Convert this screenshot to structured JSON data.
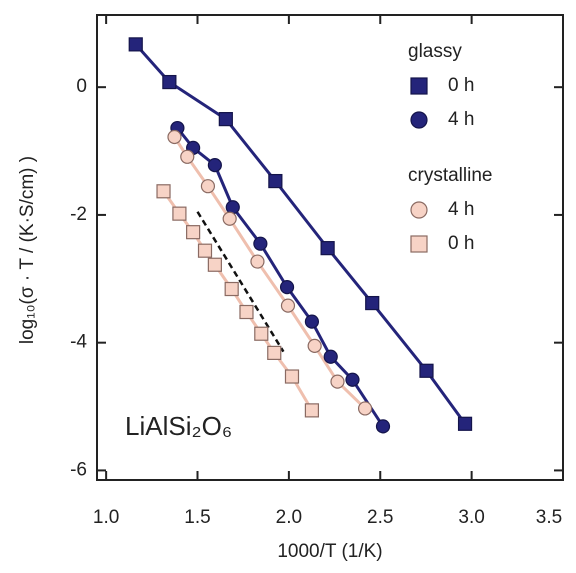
{
  "chart_data": {
    "type": "scatter",
    "x_label": "1000/T (1/K)",
    "y_label": "log₁₀(σ · T / (K·S/cm) )",
    "annotation": "LiAlSi₂O₆",
    "xlim": [
      0.95,
      3.5
    ],
    "ylim": [
      -6.15,
      1.13
    ],
    "xticks": [
      {
        "value": 1,
        "label": "1.0"
      },
      1.5,
      {
        "value": 2,
        "label": "2.0"
      },
      2.5,
      {
        "value": 3,
        "label": "3.0"
      },
      3.5
    ],
    "yticks": [
      -6,
      -4,
      -2,
      0
    ],
    "series": [
      {
        "group": "glassy",
        "name": "0 h",
        "marker": "square",
        "color": "#24247a",
        "edge": "#14144a",
        "line_color": "#24247a",
        "x": [
          1.162,
          1.346,
          1.655,
          1.926,
          2.212,
          2.456,
          2.753,
          2.964
        ],
        "values": [
          0.67,
          0.08,
          -0.5,
          -1.47,
          -2.52,
          -3.38,
          -4.44,
          -5.27
        ]
      },
      {
        "name": "4 h",
        "marker": "circle",
        "color": "#24247a",
        "edge": "#14144a",
        "line_color": "#24247a",
        "x": [
          1.39,
          1.476,
          1.595,
          1.693,
          1.844,
          1.99,
          2.126,
          2.229,
          2.348,
          2.515
        ],
        "values": [
          -0.64,
          -0.95,
          -1.22,
          -1.88,
          -2.45,
          -3.13,
          -3.67,
          -4.22,
          -4.58,
          -5.31
        ]
      },
      {
        "group": "crystalline",
        "name": "4 h",
        "marker": "circle",
        "color": "#f7d3c6",
        "edge": "#8a6a62",
        "line_color": "#efbfae",
        "x": [
          1.374,
          1.444,
          1.557,
          1.676,
          1.828,
          1.995,
          2.141,
          2.266,
          2.417
        ],
        "values": [
          -0.78,
          -1.09,
          -1.55,
          -2.06,
          -2.73,
          -3.42,
          -4.05,
          -4.61,
          -5.03
        ]
      },
      {
        "name": "0 h",
        "marker": "square",
        "color": "#f7d3c6",
        "edge": "#8a6a62",
        "line_color": "#efbfae",
        "x": [
          1.314,
          1.401,
          1.476,
          1.541,
          1.595,
          1.687,
          1.768,
          1.849,
          1.92,
          2.017,
          2.126
        ],
        "values": [
          -1.63,
          -1.98,
          -2.27,
          -2.56,
          -2.78,
          -3.16,
          -3.52,
          -3.86,
          -4.16,
          -4.53,
          -5.06
        ]
      }
    ],
    "guide_line": {
      "x": [
        1.5,
        1.97
      ],
      "values": [
        -1.95,
        -4.14
      ],
      "color": "#111111",
      "dashed": true
    }
  }
}
